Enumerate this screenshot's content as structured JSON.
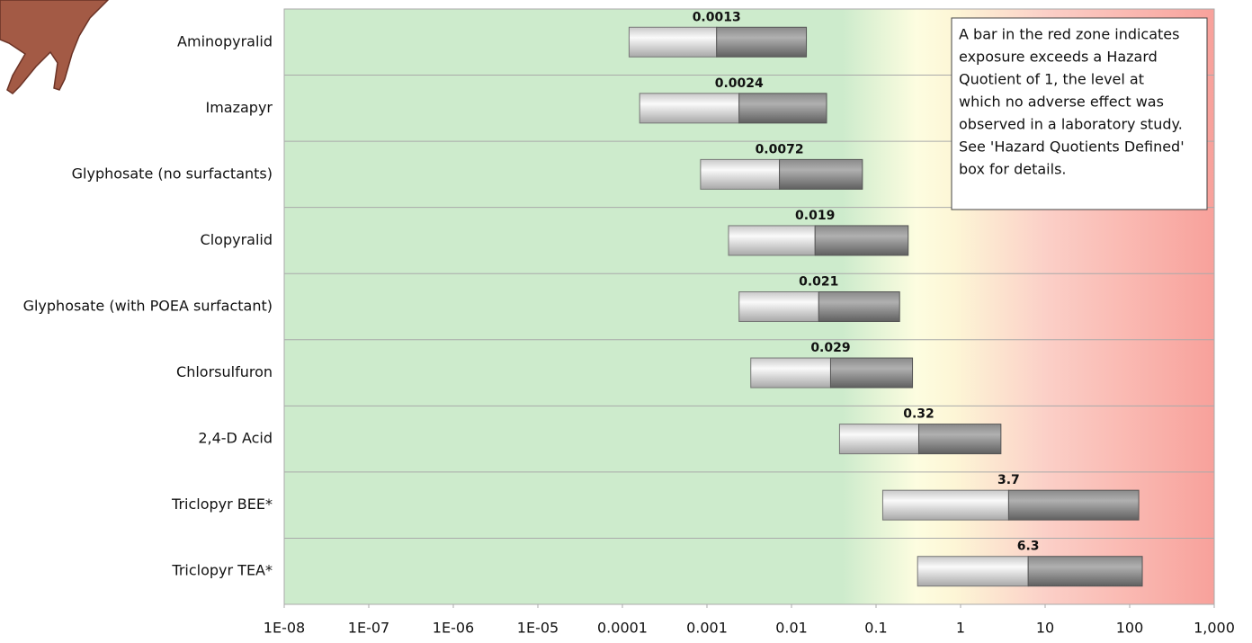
{
  "chart_data": {
    "type": "range-bar",
    "categories": [
      "Aminopyralid",
      "Imazapyr",
      "Glyphosate (no surfactants)",
      "Clopyralid",
      "Glyphosate (with POEA surfactant)",
      "Chlorsulfuron",
      "2,4-D Acid",
      "Triclopyr BEE*",
      "Triclopyr TEA*"
    ],
    "lows": [
      0.00012,
      0.00016,
      0.00084,
      0.0018,
      0.0024,
      0.0033,
      0.037,
      0.12,
      0.31
    ],
    "values": [
      0.0013,
      0.0024,
      0.0072,
      0.019,
      0.021,
      0.029,
      0.32,
      3.7,
      6.3
    ],
    "highs": [
      0.015,
      0.026,
      0.069,
      0.24,
      0.19,
      0.27,
      3.0,
      128,
      141
    ],
    "xlim": [
      1e-08,
      1000
    ],
    "log_x": true,
    "xticks": [
      {
        "value": 1e-08,
        "label": "1E-08"
      },
      {
        "value": 1e-07,
        "label": "1E-07"
      },
      {
        "value": 1e-06,
        "label": "1E-06"
      },
      {
        "value": 1e-05,
        "label": "1E-05"
      },
      0.0001,
      0.001,
      0.01,
      0.1,
      1,
      10,
      100,
      {
        "value": 1000,
        "label": "1,000"
      }
    ],
    "annotation": [
      "A bar in the red zone indicates",
      "exposure exceeds a Hazard",
      "Quotient of 1, the level at",
      "which no adverse effect was",
      "observed in a laboratory study.",
      "See 'Hazard Quotients Defined'",
      "box for details."
    ]
  }
}
